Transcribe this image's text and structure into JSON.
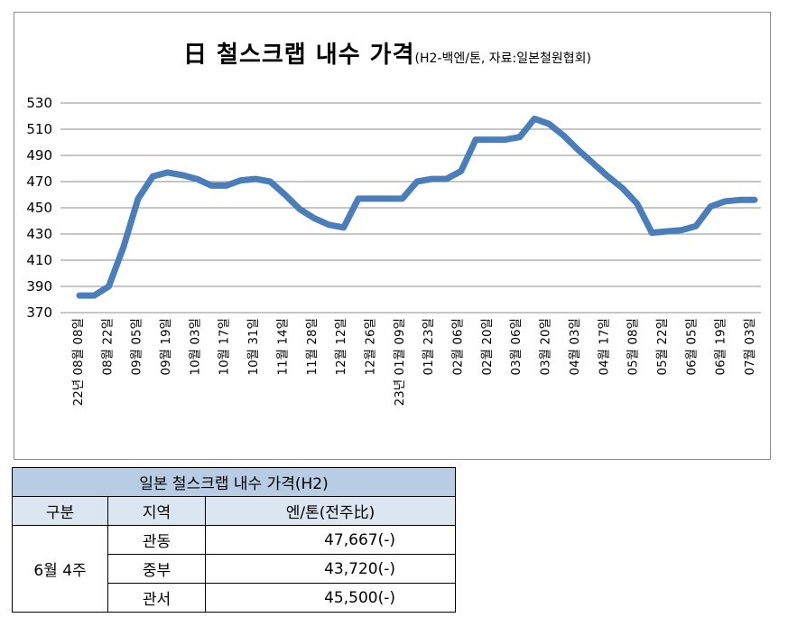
{
  "chart_data": {
    "type": "line",
    "title": "日 철스크랩 내수 가격",
    "subtitle": "(H2-백엔/톤, 자료:일본철원협회)",
    "ylim": [
      370,
      530
    ],
    "yticks": [
      370,
      390,
      410,
      430,
      450,
      470,
      490,
      510,
      530
    ],
    "grid": true,
    "series_color": "#4a7ebb",
    "xtick_labels": [
      "22년 08월 08일",
      "08월 22일",
      "09월 05일",
      "09월 19일",
      "10월 03일",
      "10월 17일",
      "10월 31일",
      "11월 14일",
      "11월 28일",
      "12월 12일",
      "12월 26일",
      "23년 01월 09일",
      "01월 23일",
      "02월 06일",
      "02월 20일",
      "03월 06일",
      "03월 20일",
      "04월 03일",
      "04월 17일",
      "05월 08일",
      "05월 22일",
      "06월 05일",
      "06월 19일",
      "07월 03일"
    ],
    "values": [
      383,
      383,
      390,
      420,
      457,
      474,
      477,
      475,
      472,
      467,
      467,
      471,
      472,
      470,
      460,
      449,
      442,
      437,
      435,
      457,
      457,
      457,
      457,
      470,
      472,
      472,
      478,
      502,
      502,
      502,
      504,
      518,
      514,
      505,
      494,
      484,
      474,
      465,
      453,
      431,
      432,
      433,
      436,
      451,
      455,
      456,
      456
    ]
  },
  "table": {
    "title": "일본 철스크랩 내수 가격(H2)",
    "headers": [
      "구분",
      "지역",
      "엔/톤(전주比)"
    ],
    "period": "6월 4주",
    "rows": [
      {
        "region": "관동",
        "price": "47,667(-)"
      },
      {
        "region": "중부",
        "price": "43,720(-)"
      },
      {
        "region": "관서",
        "price": "45,500(-)"
      }
    ]
  }
}
